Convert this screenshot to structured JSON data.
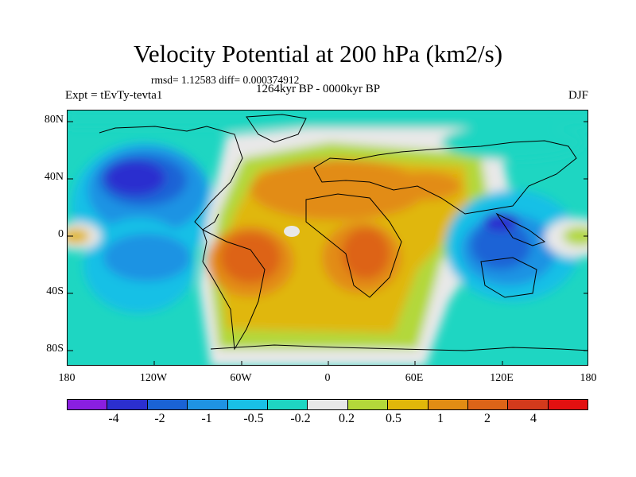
{
  "title": "Velocity Potential at 200 hPa (km2/s)",
  "stats": "rmsd= 1.12583 diff= 0.000374912",
  "period": "1264kyr BP - 0000kyr BP",
  "experiment": "Expt = tEvTy-tevta1",
  "season": "DJF",
  "lat_labels": [
    "80N",
    "40N",
    "0",
    "40S",
    "80S"
  ],
  "lon_labels": [
    "180",
    "120W",
    "60W",
    "0",
    "60E",
    "120E",
    "180"
  ],
  "colorbar": {
    "colors": [
      "#8a1fe0",
      "#2b2fcf",
      "#1a63d6",
      "#1f93e3",
      "#19c0e6",
      "#1ed6c2",
      "#e8e8e8",
      "#b3d83a",
      "#e0b70a",
      "#e28c14",
      "#dd6418",
      "#d43a1c",
      "#e31010"
    ],
    "labels": [
      "-4",
      "-2",
      "-1",
      "-0.5",
      "-0.2",
      "0.2",
      "0.5",
      "1",
      "2",
      "4"
    ]
  }
}
